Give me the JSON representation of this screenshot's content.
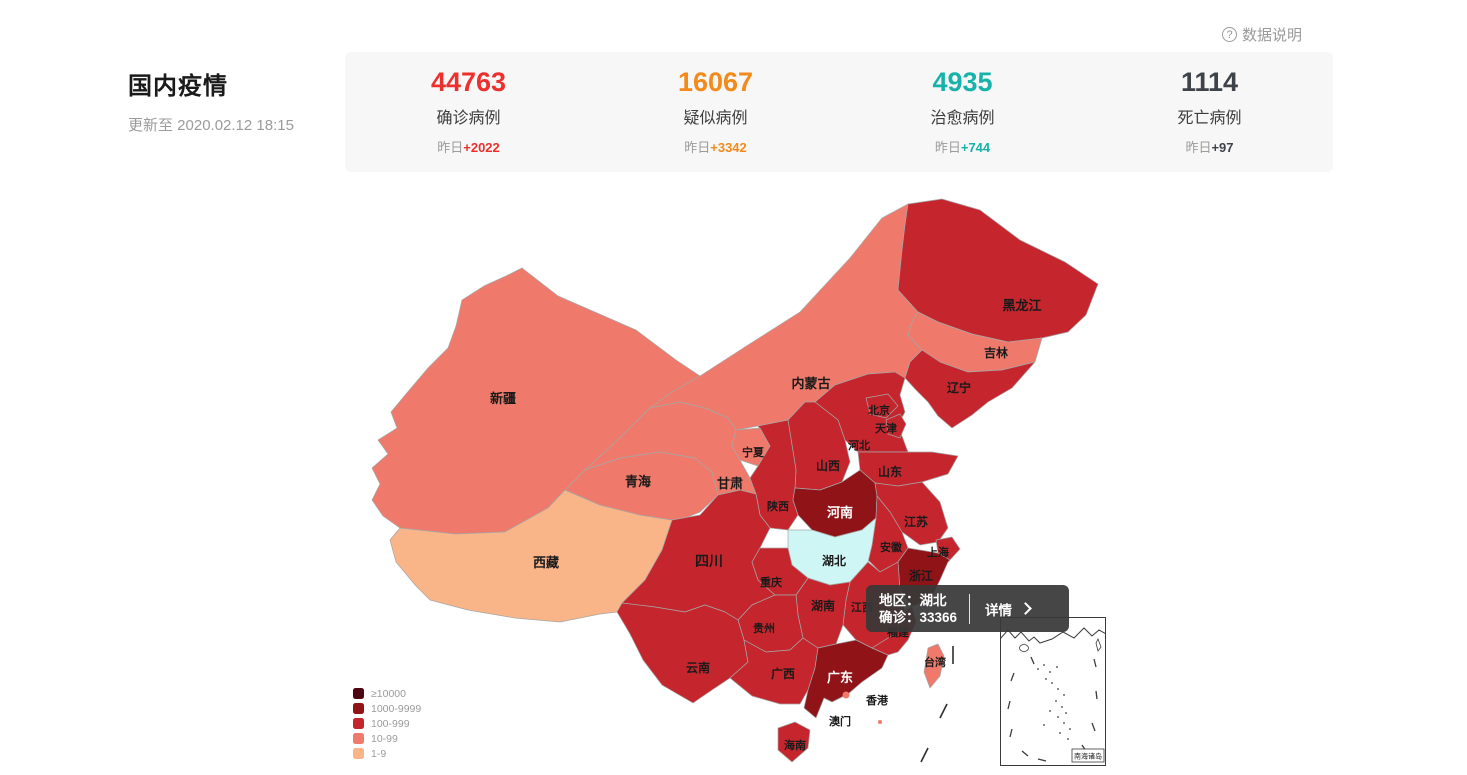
{
  "help": {
    "label": "数据说明"
  },
  "header": {
    "title": "国内疫情",
    "updated": "更新至 2020.02.12 18:15"
  },
  "stats": [
    {
      "value": "44763",
      "label": "确诊病例",
      "delta_prefix": "昨日",
      "delta": "+2022",
      "color": "#ec302d"
    },
    {
      "value": "16067",
      "label": "疑似病例",
      "delta_prefix": "昨日",
      "delta": "+3342",
      "color": "#f28a1c"
    },
    {
      "value": "4935",
      "label": "治愈病例",
      "delta_prefix": "昨日",
      "delta": "+744",
      "color": "#17b3aa"
    },
    {
      "value": "1114",
      "label": "死亡病例",
      "delta_prefix": "昨日",
      "delta": "+97",
      "color": "#3e4249"
    }
  ],
  "tooltip": {
    "region": "地区：湖北",
    "confirmed": "确诊：33366",
    "action": "详情"
  },
  "legend": [
    {
      "key": "gte10000",
      "label": "≥10000",
      "color": "#4c0511"
    },
    {
      "key": "1000-9999",
      "label": "1000-9999",
      "color": "#901318"
    },
    {
      "key": "100-999",
      "label": "100-999",
      "color": "#c5262e"
    },
    {
      "key": "10-99",
      "label": "10-99",
      "color": "#ef7a6b"
    },
    {
      "key": "1-9",
      "label": "1-9",
      "color": "#f9b488"
    }
  ],
  "map": {
    "highlight_fill": "#cdf6f4",
    "inset_label": "南海诸岛",
    "provinces": [
      {
        "id": "xinjiang",
        "name": "新疆",
        "category": "10-99"
      },
      {
        "id": "xizang",
        "name": "西藏",
        "category": "1-9"
      },
      {
        "id": "qinghai",
        "name": "青海",
        "category": "10-99"
      },
      {
        "id": "gansu",
        "name": "甘肃",
        "category": "10-99"
      },
      {
        "id": "ningxia",
        "name": "宁夏",
        "category": "10-99"
      },
      {
        "id": "neimenggu",
        "name": "内蒙古",
        "category": "10-99"
      },
      {
        "id": "heilongjiang",
        "name": "黑龙江",
        "category": "100-999"
      },
      {
        "id": "jilin",
        "name": "吉林",
        "category": "10-99"
      },
      {
        "id": "liaoning",
        "name": "辽宁",
        "category": "100-999"
      },
      {
        "id": "beijing",
        "name": "北京",
        "category": "100-999"
      },
      {
        "id": "tianjin",
        "name": "天津",
        "category": "100-999"
      },
      {
        "id": "hebei",
        "name": "河北",
        "category": "100-999"
      },
      {
        "id": "shanxi",
        "name": "山西",
        "category": "100-999"
      },
      {
        "id": "shandong",
        "name": "山东",
        "category": "100-999"
      },
      {
        "id": "henan",
        "name": "河南",
        "category": "1000-9999",
        "label_white": true
      },
      {
        "id": "shaanxi",
        "name": "陕西",
        "category": "100-999"
      },
      {
        "id": "jiangsu",
        "name": "江苏",
        "category": "100-999"
      },
      {
        "id": "anhui",
        "name": "安徽",
        "category": "100-999"
      },
      {
        "id": "shanghai",
        "name": "上海",
        "category": "100-999"
      },
      {
        "id": "zhejiang",
        "name": "浙江",
        "category": "1000-9999"
      },
      {
        "id": "hubei",
        "name": "湖北",
        "category": "gte10000",
        "highlighted": true,
        "confirmed": "33366"
      },
      {
        "id": "jiangxi",
        "name": "江西",
        "category": "100-999"
      },
      {
        "id": "hunan",
        "name": "湖南",
        "category": "100-999"
      },
      {
        "id": "chongqing",
        "name": "重庆",
        "category": "100-999"
      },
      {
        "id": "sichuan",
        "name": "四川",
        "category": "100-999"
      },
      {
        "id": "guizhou",
        "name": "贵州",
        "category": "100-999"
      },
      {
        "id": "yunnan",
        "name": "云南",
        "category": "100-999"
      },
      {
        "id": "guangxi",
        "name": "广西",
        "category": "100-999"
      },
      {
        "id": "guangdong",
        "name": "广东",
        "category": "1000-9999",
        "label_white": true
      },
      {
        "id": "fujian",
        "name": "福建",
        "category": "100-999"
      },
      {
        "id": "hainan",
        "name": "海南",
        "category": "100-999"
      },
      {
        "id": "taiwan",
        "name": "台湾",
        "category": "10-99"
      },
      {
        "id": "xianggang",
        "name": "香港",
        "category": "10-99"
      },
      {
        "id": "aomen",
        "name": "澳门",
        "category": "10-99"
      }
    ]
  }
}
